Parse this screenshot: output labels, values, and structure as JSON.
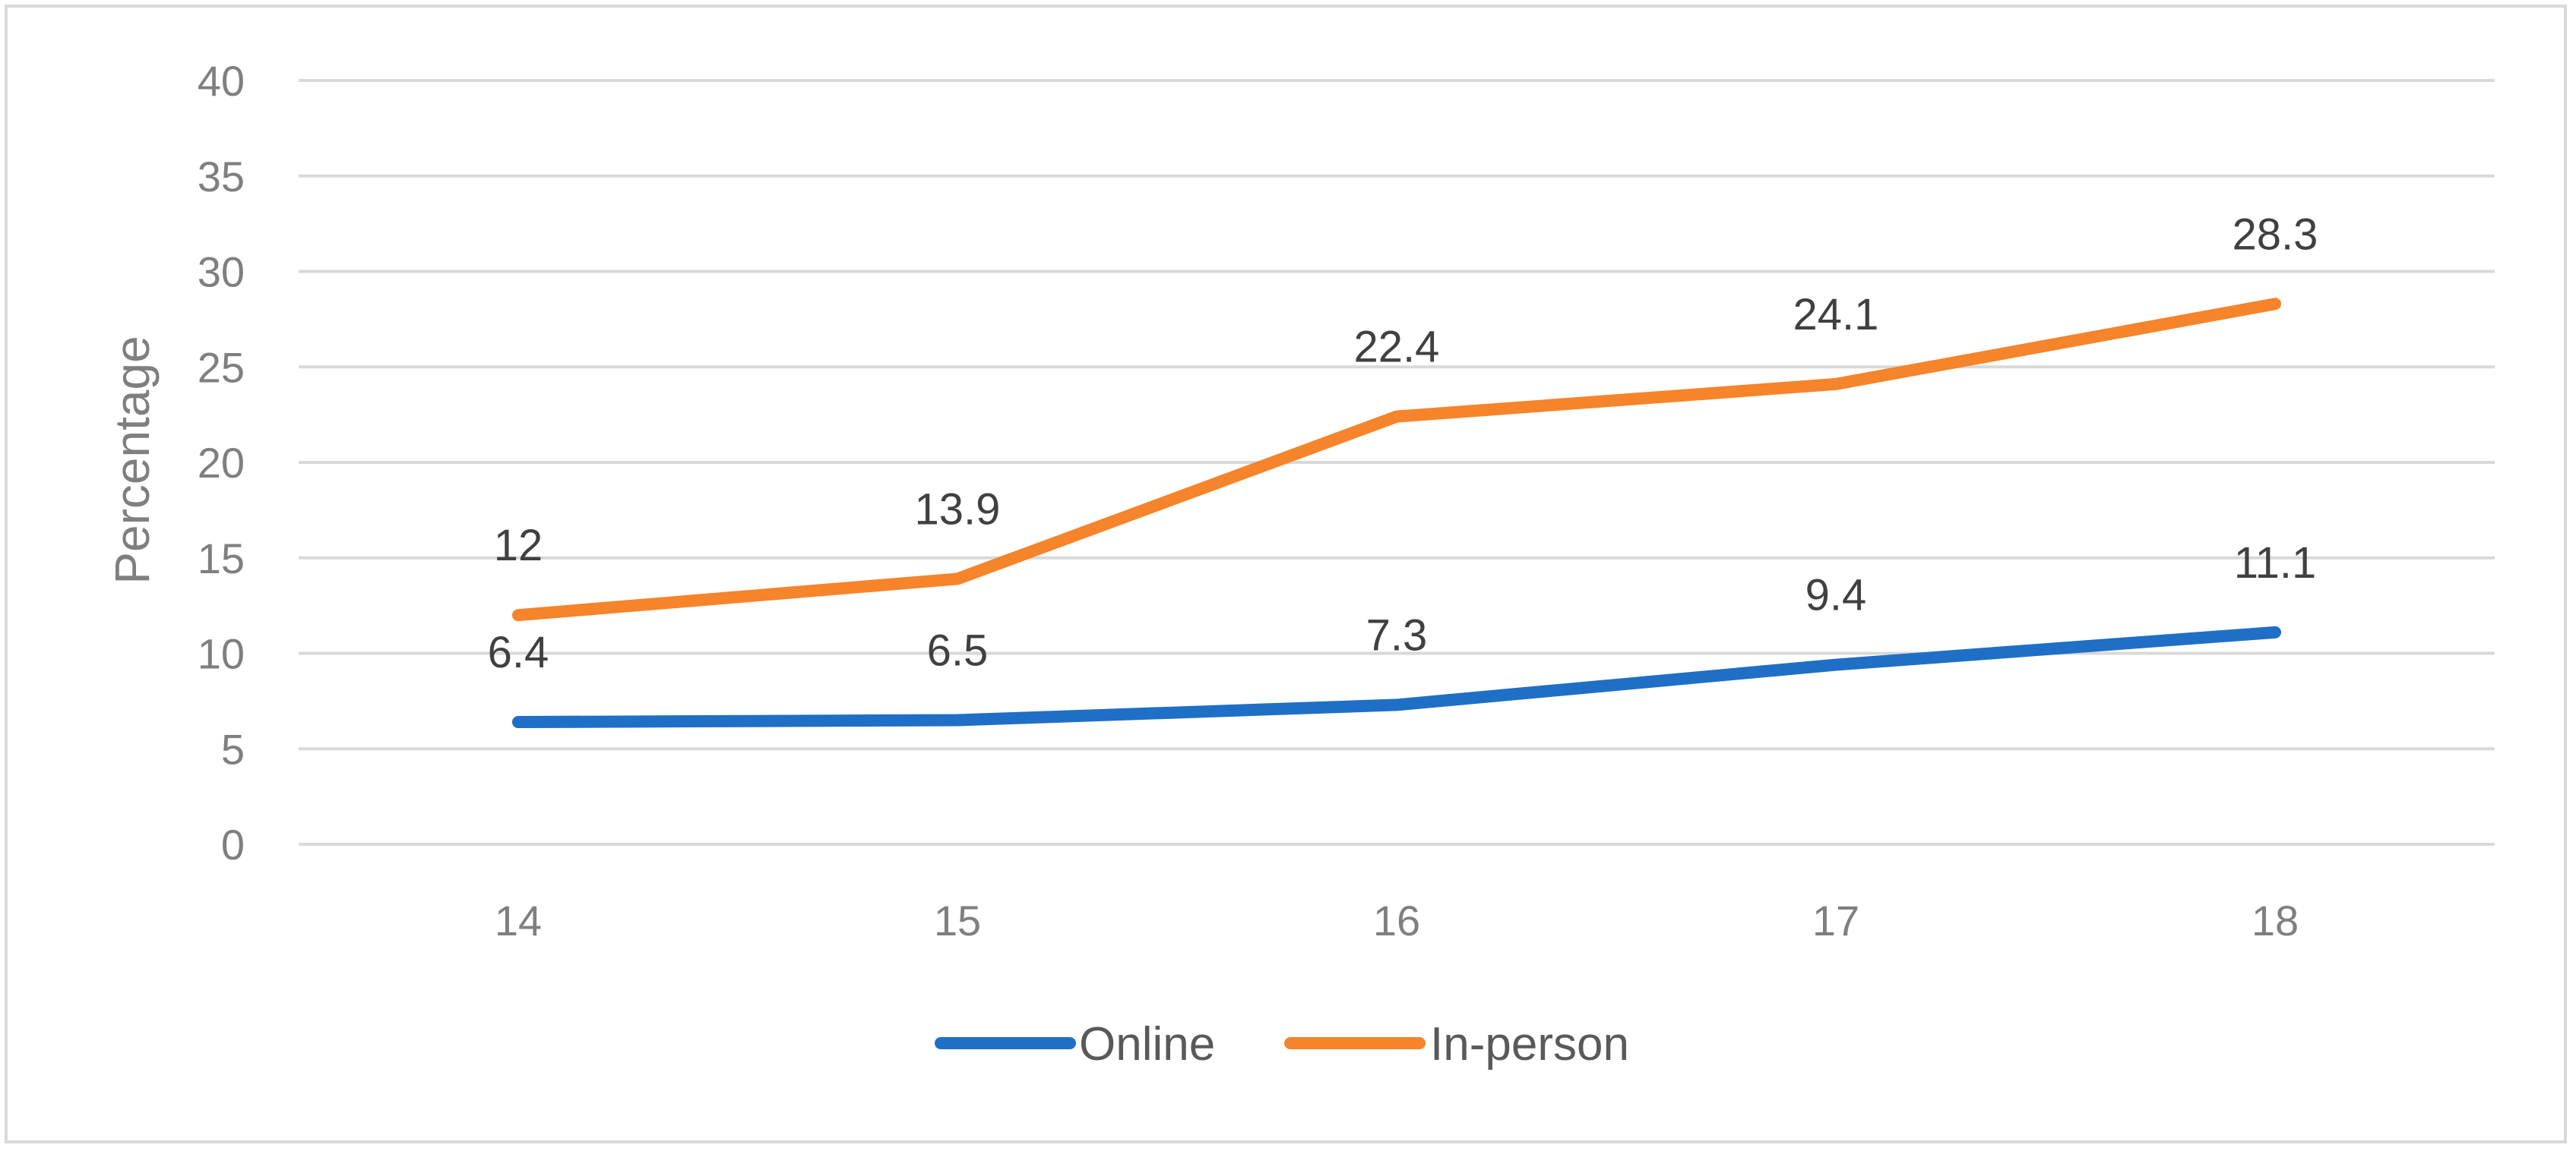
{
  "chart_data": {
    "type": "line",
    "title": "",
    "xlabel": "",
    "ylabel": "Percentage",
    "categories": [
      "14",
      "15",
      "16",
      "17",
      "18"
    ],
    "ylim": [
      0,
      40
    ],
    "yticks": [
      "0",
      "5",
      "10",
      "15",
      "20",
      "25",
      "30",
      "35",
      "40"
    ],
    "grid": true,
    "legend_position": "bottom",
    "series": [
      {
        "name": "Online",
        "color": "#1f6fc6",
        "values": [
          6.4,
          6.5,
          7.3,
          9.4,
          11.1
        ],
        "labels": [
          "6.4",
          "6.5",
          "7.3",
          "9.4",
          "11.1"
        ]
      },
      {
        "name": "In-person",
        "color": "#f5842b",
        "values": [
          12,
          13.9,
          22.4,
          24.1,
          28.3
        ],
        "labels": [
          "12",
          "13.9",
          "22.4",
          "24.1",
          "28.3"
        ]
      }
    ]
  }
}
